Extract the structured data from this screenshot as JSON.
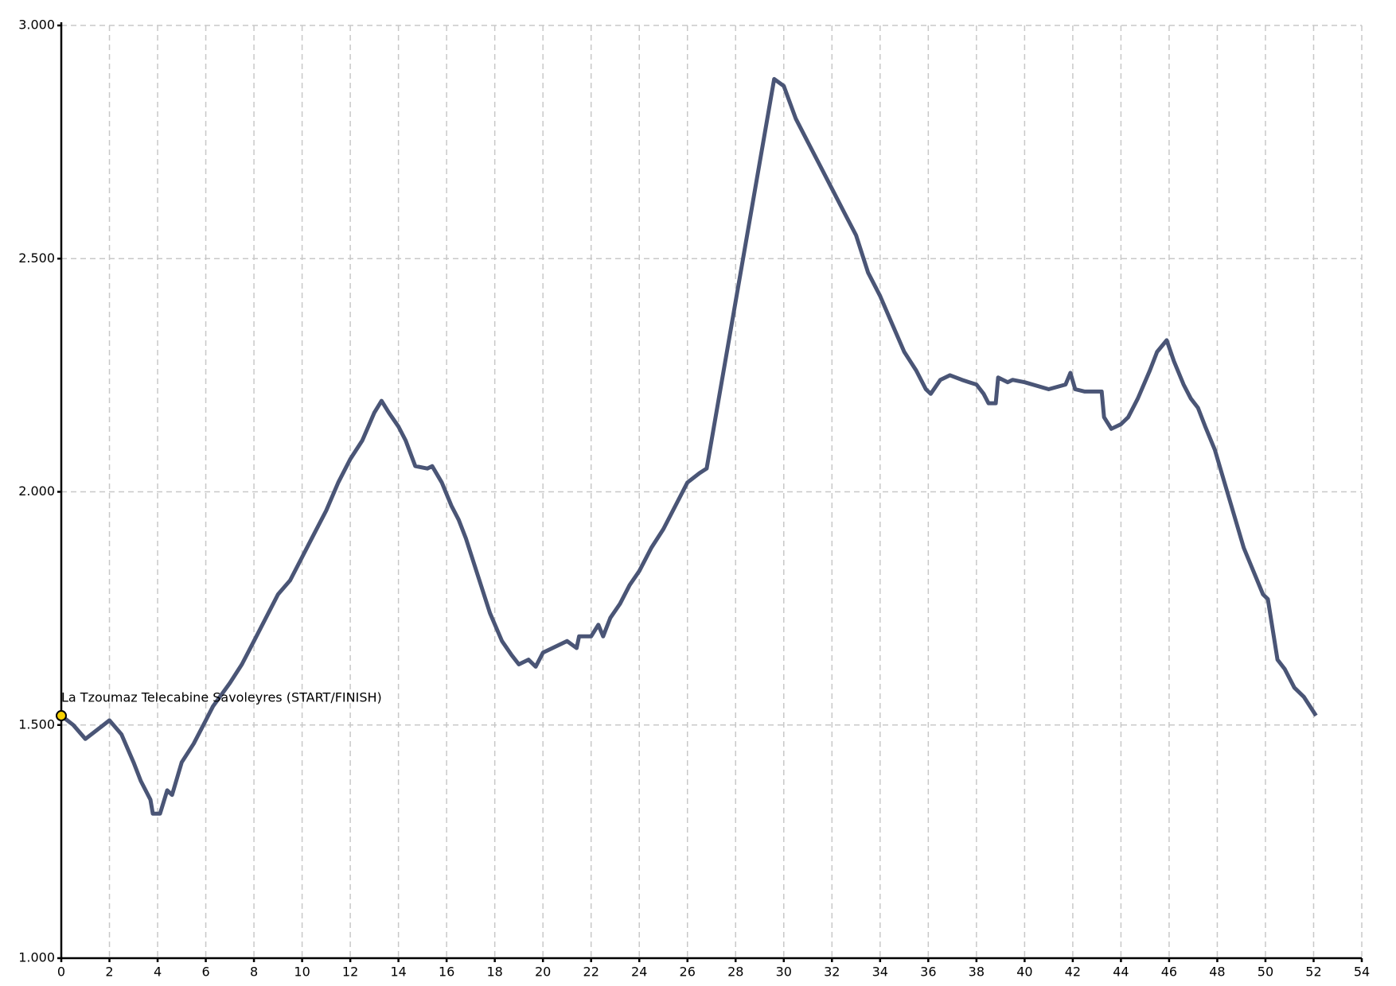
{
  "chart_data": {
    "type": "line",
    "x": [
      0,
      0.5,
      1,
      1.5,
      2,
      2.5,
      3,
      3.3,
      3.7,
      3.8,
      4.1,
      4.4,
      4.6,
      5,
      5.5,
      6,
      6.3,
      7,
      7.5,
      8,
      8.5,
      9,
      9.5,
      10,
      10.5,
      11,
      11.5,
      12,
      12.5,
      13,
      13.3,
      13.6,
      14,
      14.3,
      14.7,
      15.2,
      15.4,
      15.8,
      16.2,
      16.5,
      16.8,
      17.3,
      17.8,
      18.3,
      18.7,
      19,
      19.4,
      19.7,
      20,
      21,
      21.4,
      21.5,
      22,
      22.3,
      22.5,
      22.8,
      23.2,
      23.6,
      24,
      24.5,
      25,
      25.5,
      26,
      26.5,
      26.8,
      29.6,
      30,
      30.5,
      31,
      31.5,
      32,
      32.5,
      33,
      33.5,
      34,
      34.5,
      35,
      35.5,
      35.9,
      36.1,
      36.5,
      36.9,
      37.4,
      37.7,
      38,
      38.3,
      38.5,
      38.8,
      38.9,
      39.3,
      39.5,
      40,
      41,
      41.7,
      41.9,
      42.1,
      42.5,
      43,
      43.2,
      43.3,
      43.6,
      44,
      44.3,
      44.7,
      45.2,
      45.5,
      45.9,
      46.2,
      46.6,
      46.9,
      47.2,
      47.5,
      47.9,
      48.3,
      48.7,
      49.1,
      49.5,
      49.9,
      50.1,
      50.5,
      50.8,
      51.2,
      51.6,
      52.1
    ],
    "series": [
      {
        "color": "#4a5576",
        "values": [
          1520,
          1500,
          1470,
          1490,
          1510,
          1480,
          1420,
          1380,
          1340,
          1310,
          1310,
          1360,
          1350,
          1420,
          1460,
          1510,
          1540,
          1590,
          1630,
          1680,
          1730,
          1780,
          1810,
          1860,
          1910,
          1960,
          2020,
          2070,
          2110,
          2170,
          2195,
          2170,
          2140,
          2110,
          2055,
          2050,
          2055,
          2020,
          1970,
          1940,
          1900,
          1820,
          1740,
          1680,
          1650,
          1630,
          1640,
          1625,
          1655,
          1680,
          1665,
          1690,
          1690,
          1715,
          1690,
          1730,
          1760,
          1800,
          1830,
          1880,
          1920,
          1970,
          2020,
          2040,
          2050,
          2885,
          2870,
          2800,
          2750,
          2700,
          2650,
          2600,
          2550,
          2470,
          2420,
          2360,
          2300,
          2260,
          2220,
          2210,
          2240,
          2250,
          2240,
          2235,
          2230,
          2210,
          2190,
          2190,
          2245,
          2235,
          2240,
          2235,
          2220,
          2230,
          2255,
          2220,
          2215,
          2215,
          2215,
          2160,
          2135,
          2145,
          2160,
          2200,
          2260,
          2300,
          2325,
          2280,
          2230,
          2200,
          2180,
          2140,
          2090,
          2020,
          1950,
          1880,
          1830,
          1780,
          1770,
          1640,
          1620,
          1580,
          1560,
          1520
        ]
      }
    ],
    "annotations": [
      {
        "text": "La Tzoumaz Telecabine Savoleyres (START/FINISH)",
        "x": 0,
        "y": 1520,
        "color": "#f5d000"
      }
    ],
    "xlim": [
      0,
      54
    ],
    "xticks": [
      0,
      2,
      4,
      6,
      8,
      10,
      12,
      14,
      16,
      18,
      20,
      22,
      24,
      26,
      28,
      30,
      32,
      34,
      36,
      38,
      40,
      42,
      44,
      46,
      48,
      50,
      52,
      54
    ],
    "ylim": [
      1000,
      3000
    ],
    "yticks": [
      {
        "value": 1000,
        "label": "1.000"
      },
      {
        "value": 1500,
        "label": "1.500"
      },
      {
        "value": 2000,
        "label": "2.000"
      },
      {
        "value": 2500,
        "label": "2.500"
      },
      {
        "value": 3000,
        "label": "3.000"
      }
    ],
    "grid": true
  }
}
